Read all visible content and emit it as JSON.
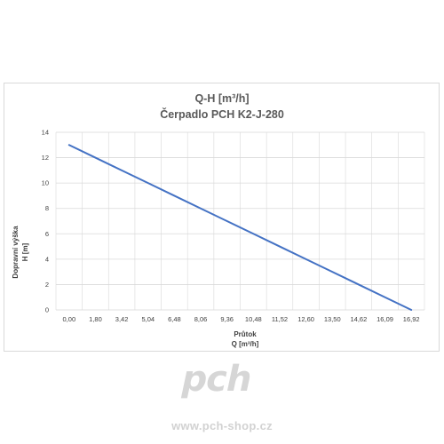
{
  "chart_data": {
    "type": "line",
    "title_line1": "Q-H  [m³/h]",
    "title_line2": "Čerpadlo PCH K2-J-280",
    "xlabel_line1": "Průtok",
    "xlabel_line2": "Q [m³/h]",
    "ylabel_line1": "Dopravní výška",
    "ylabel_line2": "H [m]",
    "categories": [
      "0,00",
      "1,80",
      "3,42",
      "5,04",
      "6,48",
      "8,06",
      "9,36",
      "10,48",
      "11,52",
      "12,60",
      "13,50",
      "14,62",
      "16,09",
      "16,92"
    ],
    "y_ticks": [
      0,
      2,
      4,
      6,
      8,
      10,
      12,
      14
    ],
    "ylim": [
      0,
      14
    ],
    "grid": true,
    "series": [
      {
        "values": [
          13.0,
          12.0,
          11.0,
          10.0,
          9.0,
          8.0,
          7.0,
          6.0,
          5.0,
          4.0,
          3.0,
          2.0,
          1.0,
          0.0
        ],
        "color": "#4472c4"
      }
    ],
    "gridColor": "#d9d9d9"
  },
  "watermark": {
    "logo_text": "pch",
    "url": "www.pch-shop.cz",
    "color": "#d2d2d2"
  }
}
